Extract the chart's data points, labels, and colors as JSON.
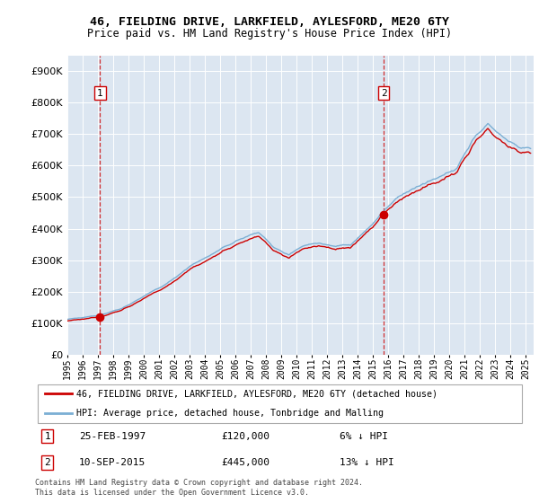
{
  "title_line1": "46, FIELDING DRIVE, LARKFIELD, AYLESFORD, ME20 6TY",
  "title_line2": "Price paid vs. HM Land Registry's House Price Index (HPI)",
  "legend_label1": "46, FIELDING DRIVE, LARKFIELD, AYLESFORD, ME20 6TY (detached house)",
  "legend_label2": "HPI: Average price, detached house, Tonbridge and Malling",
  "annotation1_date": "25-FEB-1997",
  "annotation1_price": "£120,000",
  "annotation1_hpi": "6% ↓ HPI",
  "annotation2_date": "10-SEP-2015",
  "annotation2_price": "£445,000",
  "annotation2_hpi": "13% ↓ HPI",
  "footer": "Contains HM Land Registry data © Crown copyright and database right 2024.\nThis data is licensed under the Open Government Licence v3.0.",
  "sale1_year": 1997.14,
  "sale1_value": 120000,
  "sale2_year": 2015.7,
  "sale2_value": 445000,
  "line_color_price": "#cc0000",
  "line_color_hpi": "#7bafd4",
  "dot_color": "#cc0000",
  "plot_bg": "#dce6f1",
  "ylim_min": 0,
  "ylim_max": 950000,
  "ytick_step": 100000,
  "xmin": 1995.0,
  "xmax": 2025.5
}
